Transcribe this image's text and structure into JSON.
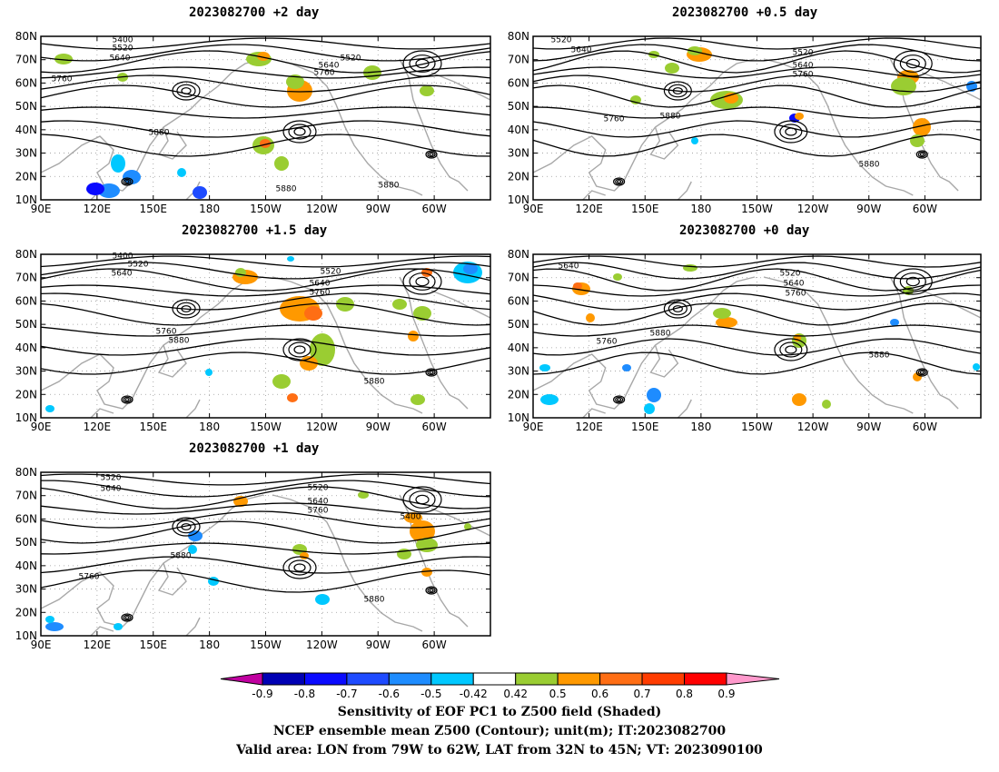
{
  "panels": [
    {
      "id": "p2d",
      "title": "2023082700 +2 day",
      "contours": [
        {
          "label": "5400"
        },
        {
          "label": "5520"
        },
        {
          "label": "5640"
        },
        {
          "label": "5760"
        },
        {
          "label": "5880"
        },
        {
          "label": "5640"
        },
        {
          "label": "5760"
        },
        {
          "label": "5520"
        },
        {
          "label": "5880"
        },
        {
          "label": "5880"
        }
      ]
    },
    {
      "id": "p05d",
      "title": "2023082700 +0.5 day",
      "contours": [
        {
          "label": "5520"
        },
        {
          "label": "5640"
        },
        {
          "label": "5520"
        },
        {
          "label": "5640"
        },
        {
          "label": "5760"
        },
        {
          "label": "5760"
        },
        {
          "label": "5880"
        },
        {
          "label": "5880"
        }
      ]
    },
    {
      "id": "p15d",
      "title": "2023082700 +1.5 day",
      "contours": [
        {
          "label": "5400"
        },
        {
          "label": "5520"
        },
        {
          "label": "5640"
        },
        {
          "label": "5520"
        },
        {
          "label": "5640"
        },
        {
          "label": "5760"
        },
        {
          "label": "5760"
        },
        {
          "label": "5880"
        },
        {
          "label": "5880"
        }
      ]
    },
    {
      "id": "p0d",
      "title": "2023082700 +0 day",
      "contours": [
        {
          "label": "5640"
        },
        {
          "label": "5520"
        },
        {
          "label": "5640"
        },
        {
          "label": "5760"
        },
        {
          "label": "5760"
        },
        {
          "label": "5880"
        },
        {
          "label": "5880"
        }
      ]
    },
    {
      "id": "p1d",
      "title": "2023082700 +1 day",
      "contours": [
        {
          "label": "5520"
        },
        {
          "label": "5640"
        },
        {
          "label": "5520"
        },
        {
          "label": "5640"
        },
        {
          "label": "5760"
        },
        {
          "label": "5400"
        },
        {
          "label": "5880"
        },
        {
          "label": "5760"
        },
        {
          "label": "5880"
        }
      ]
    }
  ],
  "lat_ticks": [
    "80N",
    "70N",
    "60N",
    "50N",
    "40N",
    "30N",
    "20N",
    "10N"
  ],
  "lon_ticks": [
    "90E",
    "120E",
    "150E",
    "180",
    "150W",
    "120W",
    "90W",
    "60W"
  ],
  "colorbar": {
    "labels": [
      "-0.9",
      "-0.8",
      "-0.7",
      "-0.6",
      "-0.5",
      "-0.42",
      "0.42",
      "0.5",
      "0.6",
      "0.7",
      "0.8",
      "0.9"
    ],
    "colors": [
      "#0000b4",
      "#0a0aff",
      "#1e4bff",
      "#1e8cff",
      "#00c8ff",
      "#ffffff",
      "#9acd32",
      "#ff9900",
      "#ff6e14",
      "#ff3c00",
      "#ff0000"
    ],
    "low_extend": "#c000a0",
    "high_extend": "#ff99cc"
  },
  "footer": {
    "line1": "Sensitivity of EOF PC1 to Z500 field (Shaded)",
    "line2": "NCEP ensemble mean Z500 (Contour); unit(m); IT:2023082700",
    "line3": "Valid area: LON from 79W to 62W, LAT from 32N to 45N; VT: 2023090100"
  }
}
